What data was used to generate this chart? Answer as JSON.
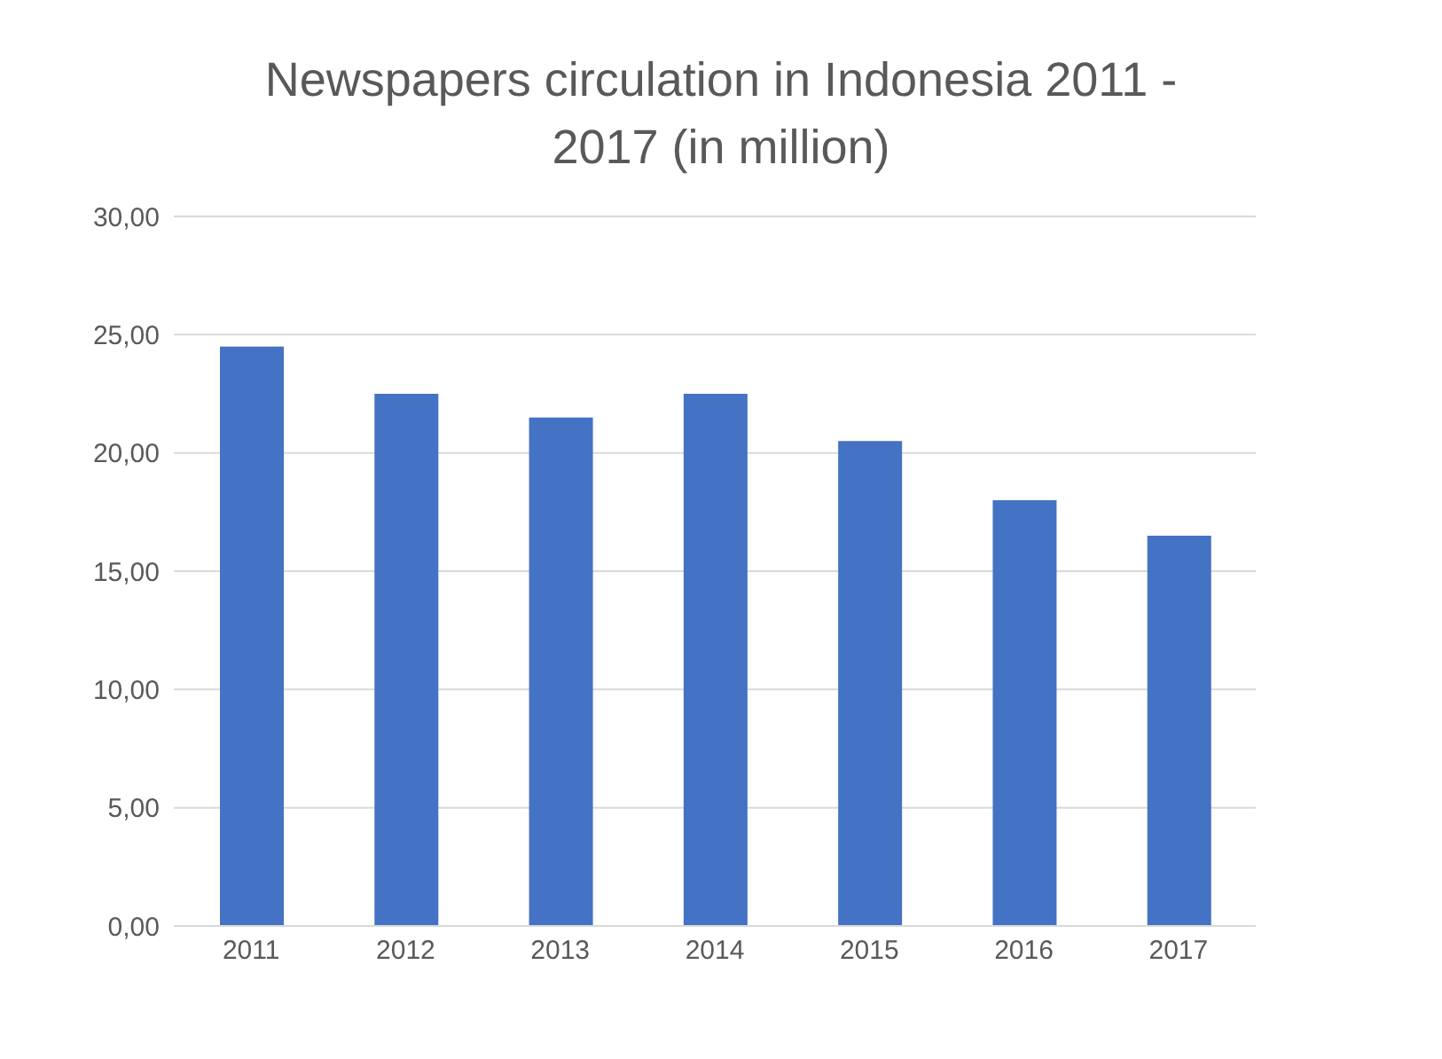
{
  "chart_data": {
    "type": "bar",
    "title": "Newspapers circulation in Indonesia 2011 - 2017 (in million)",
    "categories": [
      "2011",
      "2012",
      "2013",
      "2014",
      "2015",
      "2016",
      "2017"
    ],
    "values": [
      24.5,
      22.5,
      21.5,
      22.5,
      20.5,
      18,
      16.5
    ],
    "color": "#4472c4",
    "ylim": [
      0,
      30
    ],
    "yticks": [
      {
        "value": 0,
        "label": "0,00"
      },
      {
        "value": 5,
        "label": "5,00"
      },
      {
        "value": 10,
        "label": "10,00"
      },
      {
        "value": 15,
        "label": "15,00"
      },
      {
        "value": 20,
        "label": "20,00"
      },
      {
        "value": 25,
        "label": "25,00"
      },
      {
        "value": 30,
        "label": "30,00"
      }
    ],
    "grid": "y"
  }
}
